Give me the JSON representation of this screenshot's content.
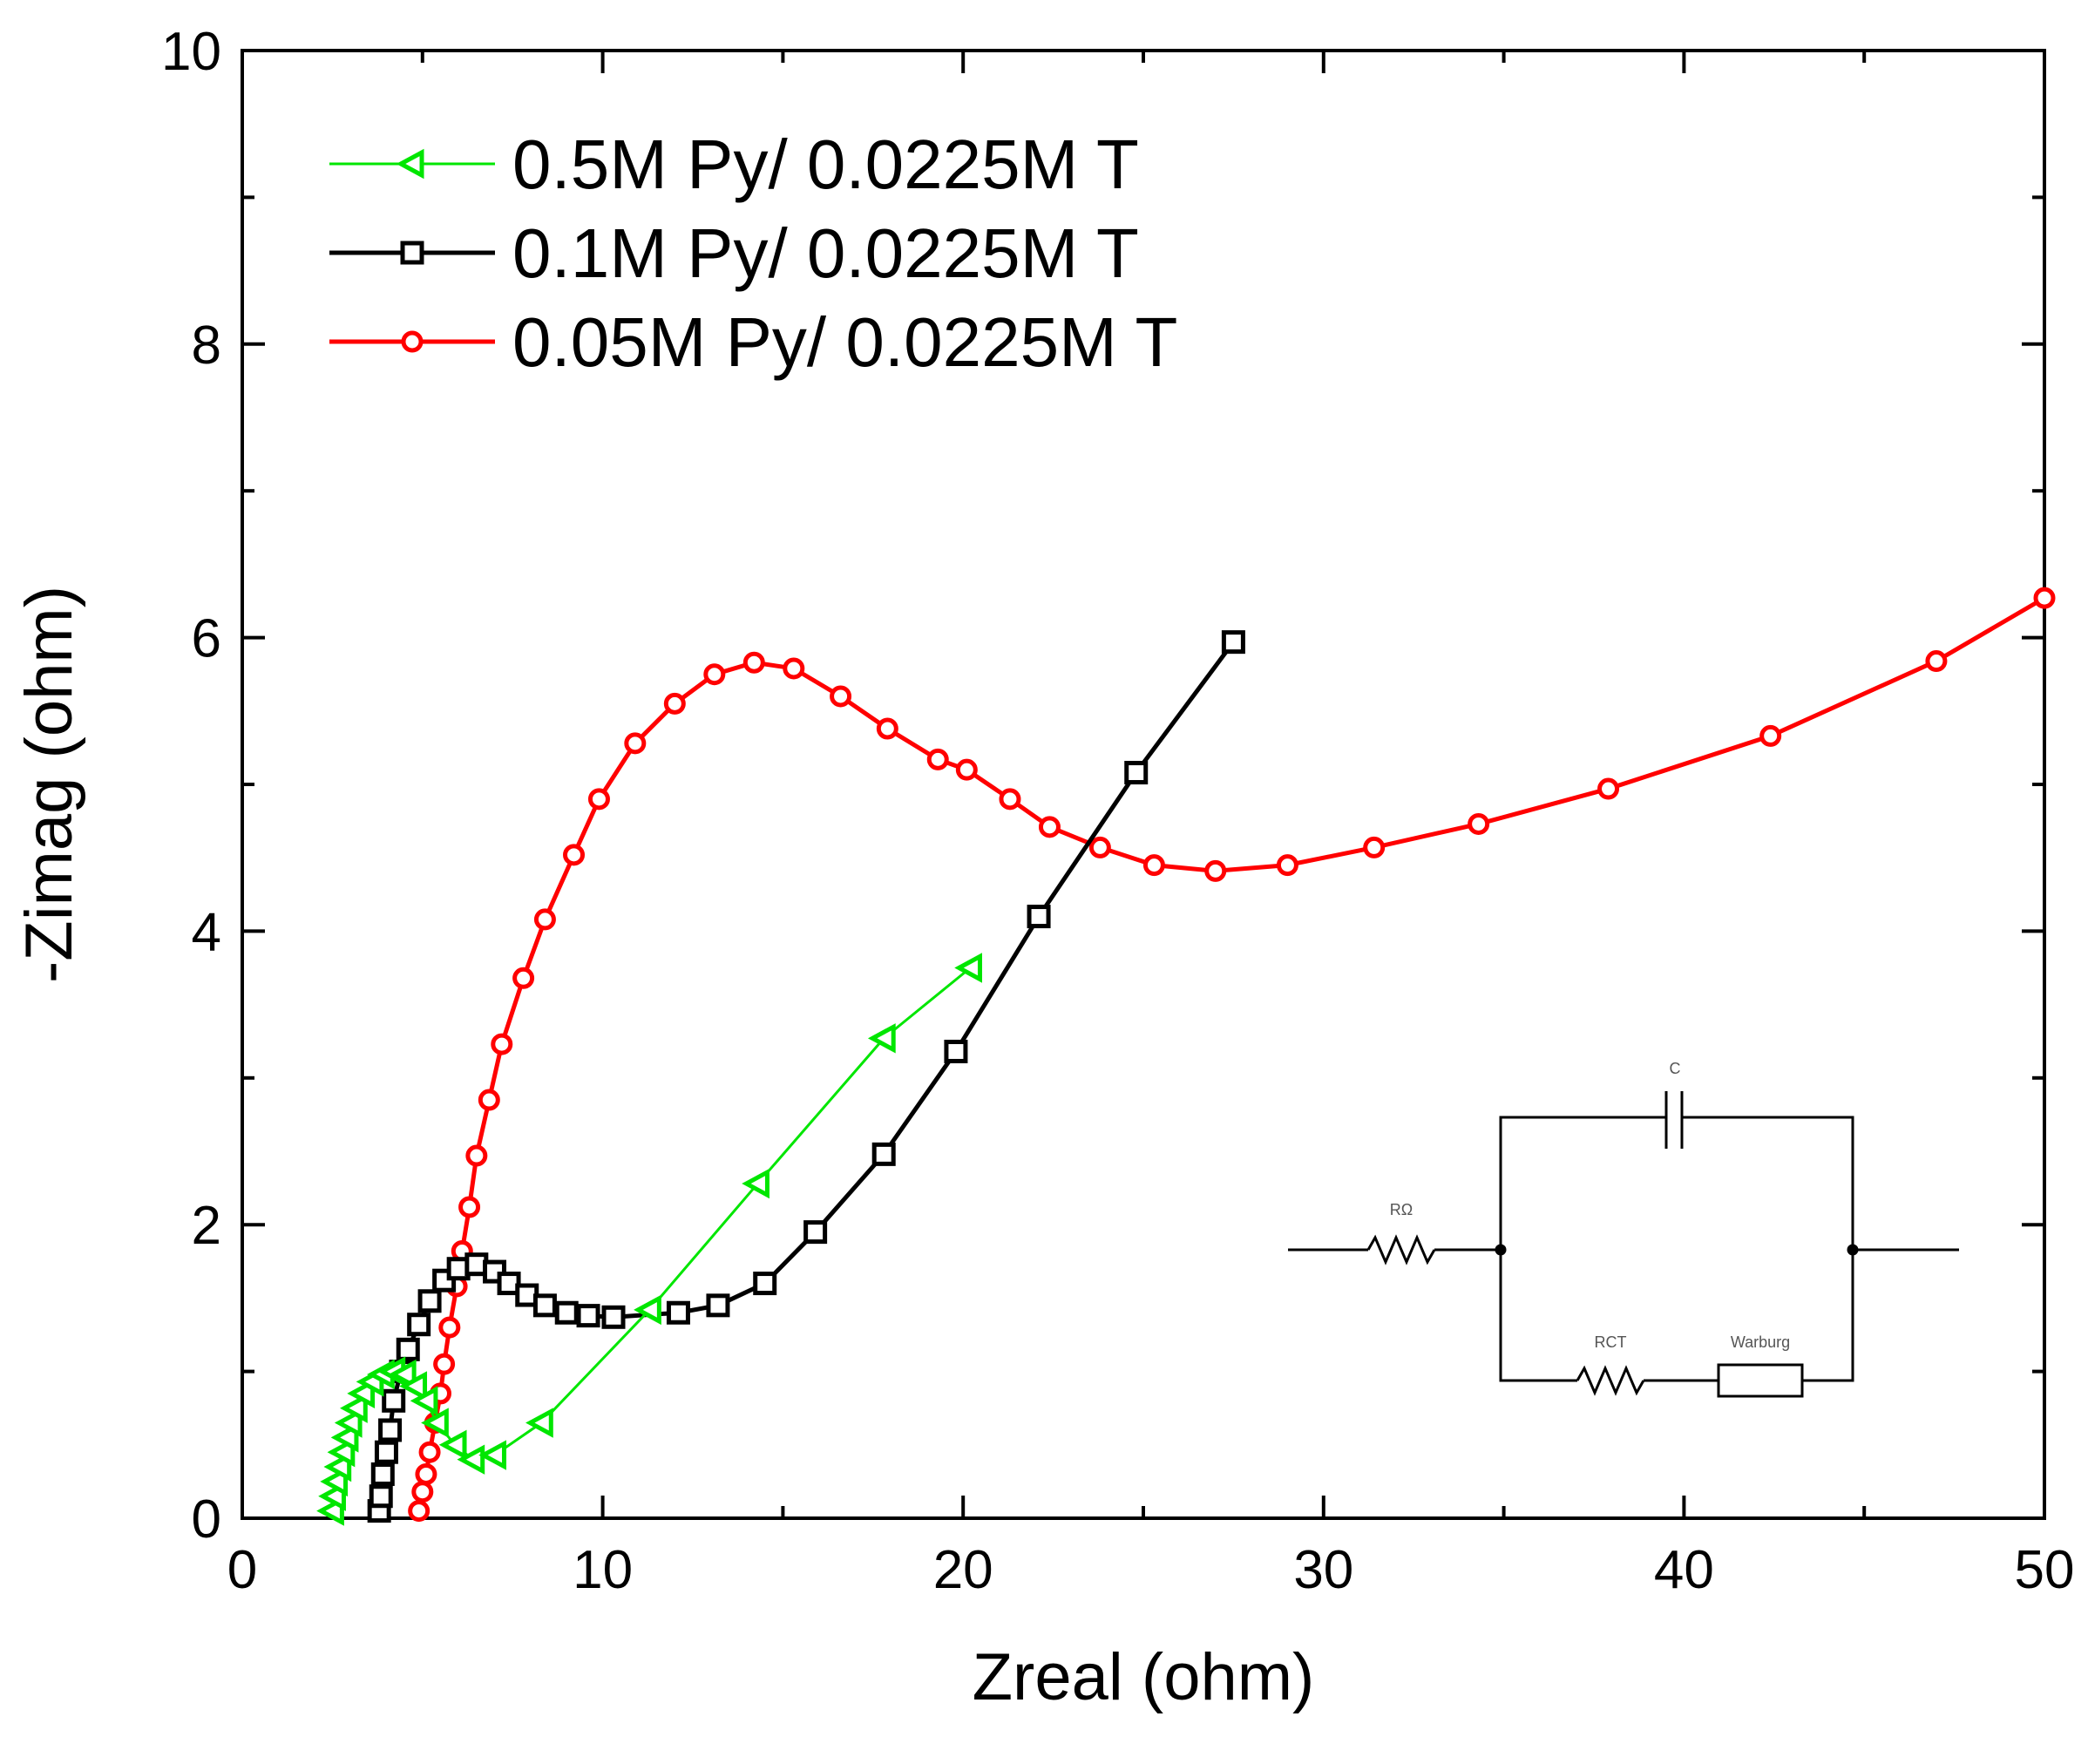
{
  "chart_data": {
    "type": "scatter",
    "xlabel": "Zreal (ohm)",
    "ylabel": "-Zimag (ohm)",
    "xlim": [
      0,
      50
    ],
    "ylim": [
      0,
      10
    ],
    "x_ticks": [
      "0",
      "10",
      "20",
      "30",
      "40",
      "50"
    ],
    "y_ticks": [
      "0",
      "2",
      "4",
      "6",
      "8",
      "10"
    ],
    "grid": false,
    "legend_position": "top-left",
    "series": [
      {
        "name": "0.5M Py/ 0.0225M T",
        "color": "#00e600",
        "marker": "triangle-left",
        "points": [
          [
            2.5,
            0.05
          ],
          [
            2.55,
            0.15
          ],
          [
            2.6,
            0.25
          ],
          [
            2.7,
            0.35
          ],
          [
            2.8,
            0.45
          ],
          [
            2.9,
            0.55
          ],
          [
            3.0,
            0.65
          ],
          [
            3.15,
            0.75
          ],
          [
            3.35,
            0.85
          ],
          [
            3.6,
            0.93
          ],
          [
            3.9,
            0.98
          ],
          [
            4.2,
            1.0
          ],
          [
            4.5,
            0.98
          ],
          [
            4.8,
            0.9
          ],
          [
            5.1,
            0.8
          ],
          [
            5.4,
            0.65
          ],
          [
            5.9,
            0.5
          ],
          [
            6.4,
            0.4
          ],
          [
            7.0,
            0.43
          ],
          [
            8.3,
            0.65
          ],
          [
            11.3,
            1.42
          ],
          [
            14.3,
            2.28
          ],
          [
            17.8,
            3.27
          ],
          [
            20.2,
            3.75
          ]
        ]
      },
      {
        "name": "0.1M Py/ 0.0225M T",
        "color": "#000000",
        "marker": "square",
        "points": [
          [
            3.8,
            0.05
          ],
          [
            3.85,
            0.15
          ],
          [
            3.9,
            0.3
          ],
          [
            4.0,
            0.45
          ],
          [
            4.1,
            0.6
          ],
          [
            4.2,
            0.8
          ],
          [
            4.4,
            1.0
          ],
          [
            4.6,
            1.15
          ],
          [
            4.9,
            1.32
          ],
          [
            5.2,
            1.48
          ],
          [
            5.6,
            1.62
          ],
          [
            6.0,
            1.7
          ],
          [
            6.5,
            1.73
          ],
          [
            7.0,
            1.68
          ],
          [
            7.4,
            1.6
          ],
          [
            7.9,
            1.52
          ],
          [
            8.4,
            1.45
          ],
          [
            9.0,
            1.4
          ],
          [
            9.6,
            1.38
          ],
          [
            10.3,
            1.37
          ],
          [
            12.1,
            1.4
          ],
          [
            13.2,
            1.45
          ],
          [
            14.5,
            1.6
          ],
          [
            15.9,
            1.95
          ],
          [
            17.8,
            2.48
          ],
          [
            19.8,
            3.18
          ],
          [
            22.1,
            4.1
          ],
          [
            24.8,
            5.08
          ],
          [
            27.5,
            5.97
          ]
        ]
      },
      {
        "name": "0.05M Py/ 0.0225M T",
        "color": "#ff0000",
        "marker": "circle",
        "points": [
          [
            4.9,
            0.05
          ],
          [
            5.0,
            0.18
          ],
          [
            5.1,
            0.3
          ],
          [
            5.2,
            0.45
          ],
          [
            5.35,
            0.65
          ],
          [
            5.5,
            0.85
          ],
          [
            5.6,
            1.05
          ],
          [
            5.75,
            1.3
          ],
          [
            5.95,
            1.58
          ],
          [
            6.1,
            1.82
          ],
          [
            6.3,
            2.12
          ],
          [
            6.5,
            2.47
          ],
          [
            6.85,
            2.85
          ],
          [
            7.2,
            3.23
          ],
          [
            7.8,
            3.68
          ],
          [
            8.4,
            4.08
          ],
          [
            9.2,
            4.52
          ],
          [
            9.9,
            4.9
          ],
          [
            10.9,
            5.28
          ],
          [
            12.0,
            5.55
          ],
          [
            13.1,
            5.75
          ],
          [
            14.2,
            5.83
          ],
          [
            15.3,
            5.79
          ],
          [
            16.6,
            5.6
          ],
          [
            17.9,
            5.38
          ],
          [
            19.3,
            5.17
          ],
          [
            20.1,
            5.1
          ],
          [
            21.3,
            4.9
          ],
          [
            22.4,
            4.71
          ],
          [
            23.8,
            4.57
          ],
          [
            25.3,
            4.45
          ],
          [
            27.0,
            4.41
          ],
          [
            29.0,
            4.45
          ],
          [
            31.4,
            4.57
          ],
          [
            34.3,
            4.73
          ],
          [
            37.9,
            4.97
          ],
          [
            42.4,
            5.33
          ],
          [
            47.0,
            5.84
          ],
          [
            50.0,
            6.27
          ]
        ]
      }
    ]
  },
  "inset_circuit": {
    "labels": {
      "capacitor": "C",
      "ohmic_resistor": "RΩ",
      "charge_transfer_resistor": "RCT",
      "warburg_element": "Warburg"
    }
  }
}
